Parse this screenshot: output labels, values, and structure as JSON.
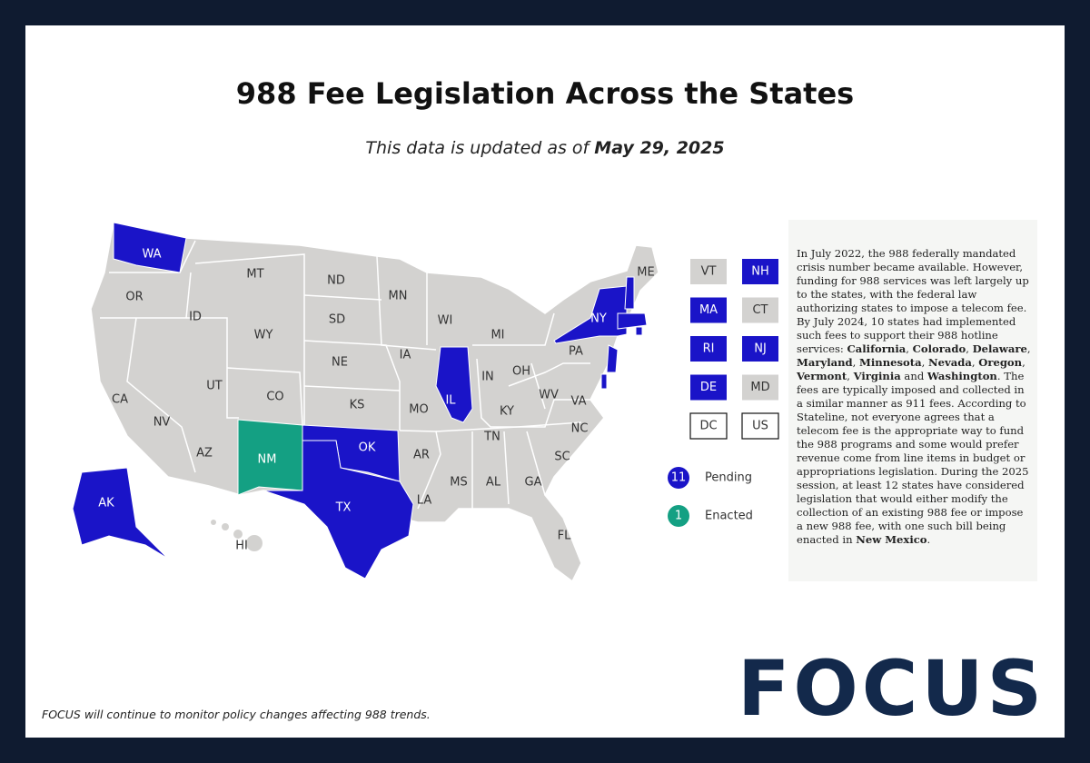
{
  "header": {
    "title": "988 Fee Legislation Across the States",
    "subtitle": [
      {
        "text": "This data is updated as of ",
        "bold": false
      },
      {
        "text": "May 29, 2025",
        "bold": true
      }
    ]
  },
  "states": [
    {
      "label": "WA",
      "color": "#1a14c8"
    },
    {
      "label": "OR",
      "color": "#d3d2d0"
    },
    {
      "label": "CA",
      "color": "#d3d2d0"
    },
    {
      "label": "NV",
      "color": "#d3d2d0"
    },
    {
      "label": "ID",
      "color": "#d3d2d0"
    },
    {
      "label": "MT",
      "color": "#d3d2d0"
    },
    {
      "label": "WY",
      "color": "#d3d2d0"
    },
    {
      "label": "UT",
      "color": "#d3d2d0"
    },
    {
      "label": "CO",
      "color": "#d3d2d0"
    },
    {
      "label": "AZ",
      "color": "#d3d2d0"
    },
    {
      "label": "NM",
      "color": "#14a083"
    },
    {
      "label": "ND",
      "color": "#d3d2d0"
    },
    {
      "label": "SD",
      "color": "#d3d2d0"
    },
    {
      "label": "NE",
      "color": "#d3d2d0"
    },
    {
      "label": "KS",
      "color": "#d3d2d0"
    },
    {
      "label": "OK",
      "color": "#1a14c8"
    },
    {
      "label": "TX",
      "color": "#1a14c8"
    },
    {
      "label": "MN",
      "color": "#d3d2d0"
    },
    {
      "label": "IA",
      "color": "#d3d2d0"
    },
    {
      "label": "MO",
      "color": "#d3d2d0"
    },
    {
      "label": "AR",
      "color": "#d3d2d0"
    },
    {
      "label": "LA",
      "color": "#d3d2d0"
    },
    {
      "label": "WI",
      "color": "#d3d2d0"
    },
    {
      "label": "IL",
      "color": "#1a14c8"
    },
    {
      "label": "MI",
      "color": "#d3d2d0"
    },
    {
      "label": "IN",
      "color": "#d3d2d0"
    },
    {
      "label": "OH",
      "color": "#d3d2d0"
    },
    {
      "label": "KY",
      "color": "#d3d2d0"
    },
    {
      "label": "TN",
      "color": "#d3d2d0"
    },
    {
      "label": "MS",
      "color": "#d3d2d0"
    },
    {
      "label": "AL",
      "color": "#d3d2d0"
    },
    {
      "label": "GA",
      "color": "#d3d2d0"
    },
    {
      "label": "FL",
      "color": "#d3d2d0"
    },
    {
      "label": "SC",
      "color": "#d3d2d0"
    },
    {
      "label": "NC",
      "color": "#d3d2d0"
    },
    {
      "label": "VA",
      "color": "#d3d2d0"
    },
    {
      "label": "WV",
      "color": "#d3d2d0"
    },
    {
      "label": "PA",
      "color": "#d3d2d0"
    },
    {
      "label": "NY",
      "color": "#1a14c8"
    },
    {
      "label": "ME",
      "color": "#d3d2d0"
    },
    {
      "label": "AK",
      "color": "#1a14c8"
    },
    {
      "label": "HI",
      "color": "#d3d2d0"
    }
  ],
  "small_states": [
    {
      "label": "VT",
      "color": "#d3d2d0"
    },
    {
      "label": "NH",
      "color": "#1a14c8"
    },
    {
      "label": "MA",
      "color": "#1a14c8"
    },
    {
      "label": "CT",
      "color": "#d3d2d0"
    },
    {
      "label": "RI",
      "color": "#1a14c8"
    },
    {
      "label": "NJ",
      "color": "#1a14c8"
    },
    {
      "label": "DE",
      "color": "#1a14c8"
    },
    {
      "label": "MD",
      "color": "#d3d2d0"
    },
    {
      "label": "DC",
      "color": "#ffffff"
    },
    {
      "label": "US",
      "color": "#ffffff"
    }
  ],
  "legend": [
    {
      "count": 11,
      "label": "Pending",
      "color": "#1a14c8"
    },
    {
      "count": 1,
      "label": "Enacted",
      "color": "#14a083"
    }
  ],
  "paragraph": [
    {
      "text": "In July 2022, the 988 federally mandated crisis number became available. However, funding for 988 services was left largely up to the states, with the federal law authorizing states to impose a telecom fee. By July 2024, 10 states had implemented such fees to support their 988 hotline services: ",
      "bold": false
    },
    {
      "text": "California",
      "bold": true
    },
    {
      "text": ", ",
      "bold": false
    },
    {
      "text": "Colorado",
      "bold": true
    },
    {
      "text": ", ",
      "bold": false
    },
    {
      "text": "Delaware",
      "bold": true
    },
    {
      "text": ", ",
      "bold": false
    },
    {
      "text": "Maryland",
      "bold": true
    },
    {
      "text": ", ",
      "bold": false
    },
    {
      "text": "Minnesota",
      "bold": true
    },
    {
      "text": ", ",
      "bold": false
    },
    {
      "text": "Nevada",
      "bold": true
    },
    {
      "text": ", ",
      "bold": false
    },
    {
      "text": "Oregon",
      "bold": true
    },
    {
      "text": ", ",
      "bold": false
    },
    {
      "text": "Vermont",
      "bold": true
    },
    {
      "text": ", ",
      "bold": false
    },
    {
      "text": "Virginia",
      "bold": true
    },
    {
      "text": " and ",
      "bold": false
    },
    {
      "text": "Washington",
      "bold": true
    },
    {
      "text": ". The fees are typically imposed and collected in a similar manner as 911 fees. According to Stateline, not everyone agrees that a telecom fee is the appropriate way to fund the 988 programs and some would prefer revenue come from line items in budget or appropriations legislation. During the 2025 session, at least 12 states have considered legislation that would either modify the collection of an existing 988 fee or impose a new 988 fee, with one such bill being enacted in ",
      "bold": false
    },
    {
      "text": "New Mexico",
      "bold": true
    },
    {
      "text": ".",
      "bold": false
    }
  ],
  "footer": {
    "note": "FOCUS will continue to monitor policy changes affecting 988 trends.",
    "logo": "FOCUS"
  }
}
